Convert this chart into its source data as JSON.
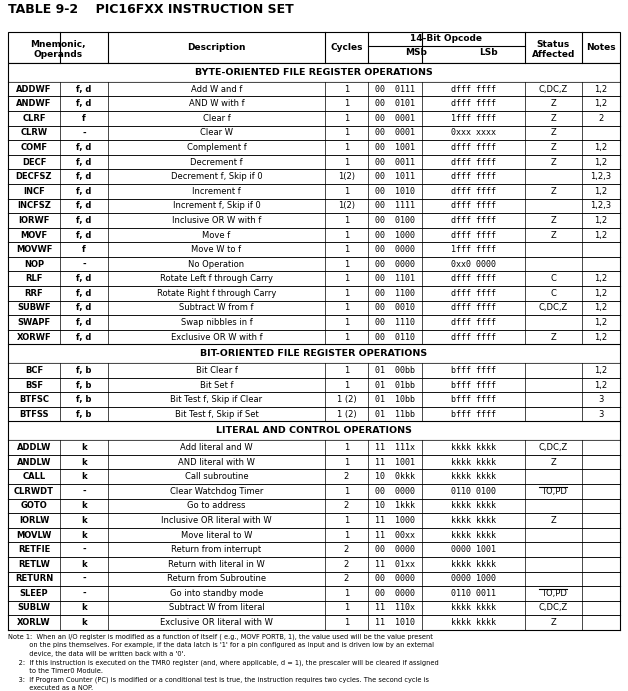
{
  "title": "TABLE 9-2    PIC16FXX INSTRUCTION SET",
  "col_headers": [
    "Mnemonic,\nOperands",
    "Description",
    "Cycles",
    "14-Bit Opcode",
    "Status\nAffected",
    "Notes"
  ],
  "subheaders": [
    "MSb",
    "LSb"
  ],
  "sections": [
    {
      "label": "BYTE-ORIENTED FILE REGISTER OPERATIONS",
      "rows": [
        [
          "ADDWF",
          "f, d",
          "Add W and f",
          "1",
          "00",
          "0111",
          "dfff",
          "ffff",
          "C,DC,Z",
          "1,2"
        ],
        [
          "ANDWF",
          "f, d",
          "AND W with f",
          "1",
          "00",
          "0101",
          "dfff",
          "ffff",
          "Z",
          "1,2"
        ],
        [
          "CLRF",
          "f",
          "Clear f",
          "1",
          "00",
          "0001",
          "1fff",
          "ffff",
          "Z",
          "2"
        ],
        [
          "CLRW",
          "-",
          "Clear W",
          "1",
          "00",
          "0001",
          "0xxx",
          "xxxx",
          "Z",
          ""
        ],
        [
          "COMF",
          "f, d",
          "Complement f",
          "1",
          "00",
          "1001",
          "dfff",
          "ffff",
          "Z",
          "1,2"
        ],
        [
          "DECF",
          "f, d",
          "Decrement f",
          "1",
          "00",
          "0011",
          "dfff",
          "ffff",
          "Z",
          "1,2"
        ],
        [
          "DECFSZ",
          "f, d",
          "Decrement f, Skip if 0",
          "1(2)",
          "00",
          "1011",
          "dfff",
          "ffff",
          "",
          "1,2,3"
        ],
        [
          "INCF",
          "f, d",
          "Increment f",
          "1",
          "00",
          "1010",
          "dfff",
          "ffff",
          "Z",
          "1,2"
        ],
        [
          "INCFSZ",
          "f, d",
          "Increment f, Skip if 0",
          "1(2)",
          "00",
          "1111",
          "dfff",
          "ffff",
          "",
          "1,2,3"
        ],
        [
          "IORWF",
          "f, d",
          "Inclusive OR W with f",
          "1",
          "00",
          "0100",
          "dfff",
          "ffff",
          "Z",
          "1,2"
        ],
        [
          "MOVF",
          "f, d",
          "Move f",
          "1",
          "00",
          "1000",
          "dfff",
          "ffff",
          "Z",
          "1,2"
        ],
        [
          "MOVWF",
          "f",
          "Move W to f",
          "1",
          "00",
          "0000",
          "1fff",
          "ffff",
          "",
          ""
        ],
        [
          "NOP",
          "-",
          "No Operation",
          "1",
          "00",
          "0000",
          "0xx0",
          "0000",
          "",
          ""
        ],
        [
          "RLF",
          "f, d",
          "Rotate Left f through Carry",
          "1",
          "00",
          "1101",
          "dfff",
          "ffff",
          "C",
          "1,2"
        ],
        [
          "RRF",
          "f, d",
          "Rotate Right f through Carry",
          "1",
          "00",
          "1100",
          "dfff",
          "ffff",
          "C",
          "1,2"
        ],
        [
          "SUBWF",
          "f, d",
          "Subtract W from f",
          "1",
          "00",
          "0010",
          "dfff",
          "ffff",
          "C,DC,Z",
          "1,2"
        ],
        [
          "SWAPF",
          "f, d",
          "Swap nibbles in f",
          "1",
          "00",
          "1110",
          "dfff",
          "ffff",
          "",
          "1,2"
        ],
        [
          "XORWF",
          "f, d",
          "Exclusive OR W with f",
          "1",
          "00",
          "0110",
          "dfff",
          "ffff",
          "Z",
          "1,2"
        ]
      ]
    },
    {
      "label": "BIT-ORIENTED FILE REGISTER OPERATIONS",
      "rows": [
        [
          "BCF",
          "f, b",
          "Bit Clear f",
          "1",
          "01",
          "00bb",
          "bfff",
          "ffff",
          "",
          "1,2"
        ],
        [
          "BSF",
          "f, b",
          "Bit Set f",
          "1",
          "01",
          "01bb",
          "bfff",
          "ffff",
          "",
          "1,2"
        ],
        [
          "BTFSC",
          "f, b",
          "Bit Test f, Skip if Clear",
          "1 (2)",
          "01",
          "10bb",
          "bfff",
          "ffff",
          "",
          "3"
        ],
        [
          "BTFSS",
          "f, b",
          "Bit Test f, Skip if Set",
          "1 (2)",
          "01",
          "11bb",
          "bfff",
          "ffff",
          "",
          "3"
        ]
      ]
    },
    {
      "label": "LITERAL AND CONTROL OPERATIONS",
      "rows": [
        [
          "ADDLW",
          "k",
          "Add literal and W",
          "1",
          "11",
          "111x",
          "kkkk",
          "kkkk",
          "C,DC,Z",
          ""
        ],
        [
          "ANDLW",
          "k",
          "AND literal with W",
          "1",
          "11",
          "1001",
          "kkkk",
          "kkkk",
          "Z",
          ""
        ],
        [
          "CALL",
          "k",
          "Call subroutine",
          "2",
          "10",
          "0kkk",
          "kkkk",
          "kkkk",
          "",
          ""
        ],
        [
          "CLRWDT",
          "-",
          "Clear Watchdog Timer",
          "1",
          "00",
          "0000",
          "0110",
          "0100",
          "TO,PD",
          ""
        ],
        [
          "GOTO",
          "k",
          "Go to address",
          "2",
          "10",
          "1kkk",
          "kkkk",
          "kkkk",
          "",
          ""
        ],
        [
          "IORLW",
          "k",
          "Inclusive OR literal with W",
          "1",
          "11",
          "1000",
          "kkkk",
          "kkkk",
          "Z",
          ""
        ],
        [
          "MOVLW",
          "k",
          "Move literal to W",
          "1",
          "11",
          "00xx",
          "kkkk",
          "kkkk",
          "",
          ""
        ],
        [
          "RETFIE",
          "-",
          "Return from interrupt",
          "2",
          "00",
          "0000",
          "0000",
          "1001",
          "",
          ""
        ],
        [
          "RETLW",
          "k",
          "Return with literal in W",
          "2",
          "11",
          "01xx",
          "kkkk",
          "kkkk",
          "",
          ""
        ],
        [
          "RETURN",
          "-",
          "Return from Subroutine",
          "2",
          "00",
          "0000",
          "0000",
          "1000",
          "",
          ""
        ],
        [
          "SLEEP",
          "-",
          "Go into standby mode",
          "1",
          "00",
          "0000",
          "0110",
          "0011",
          "TO,PD",
          ""
        ],
        [
          "SUBLW",
          "k",
          "Subtract W from literal",
          "1",
          "11",
          "110x",
          "kkkk",
          "kkkk",
          "C,DC,Z",
          ""
        ],
        [
          "XORLW",
          "k",
          "Exclusive OR literal with W",
          "1",
          "11",
          "1010",
          "kkkk",
          "kkkk",
          "Z",
          ""
        ]
      ]
    }
  ],
  "notes": [
    "Note 1:  When an I/O register is modified as a function of itself ( e.g., MOVF PORTB, 1), the value used will be the value present",
    "          on the pins themselves. For example, if the data latch is '1' for a pin configured as input and is driven low by an external",
    "          device, the data will be written back with a '0'.",
    "     2:  If this instruction is executed on the TMR0 register (and, where applicable, d = 1), the prescaler will be cleared if assigned",
    "          to the Timer0 Module.",
    "     3:  If Program Counter (PC) is modified or a conditional test is true, the instruction requires two cycles. The second cycle is",
    "          executed as a NOP."
  ],
  "overbar_cells": [
    "TO,PD",
    "TO,PD"
  ]
}
